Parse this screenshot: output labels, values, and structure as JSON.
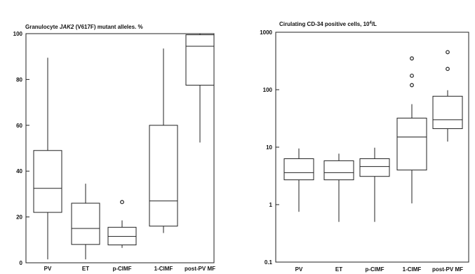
{
  "chart_data": [
    {
      "type": "boxplot",
      "title_parts": [
        "Granulocyte ",
        "JAK2",
        " (V617F) mutant alleles. %"
      ],
      "title": "Granulocyte JAK2 (V617F) mutant alleles. %",
      "xlabel": "",
      "ylabel": "",
      "yscale": "linear",
      "ylim": [
        0,
        100
      ],
      "yticks": [
        0,
        20,
        40,
        60,
        80,
        100
      ],
      "grid": false,
      "categories": [
        "PV",
        "ET",
        "p-CIMF",
        "1-CIMF",
        "post-PV MF"
      ],
      "boxes": [
        {
          "min": 1.5,
          "q1": 22,
          "median": 32.5,
          "q3": 49,
          "max": 89.5,
          "outliers": []
        },
        {
          "min": 1.5,
          "q1": 8,
          "median": 15,
          "q3": 26,
          "max": 34.5,
          "outliers": []
        },
        {
          "min": 6.5,
          "q1": 7.8,
          "median": 11.5,
          "q3": 15.5,
          "max": 18.5,
          "outliers": [
            26.5
          ]
        },
        {
          "min": 13,
          "q1": 16,
          "median": 27,
          "q3": 60,
          "max": 93.5,
          "outliers": []
        },
        {
          "min": 52.5,
          "q1": 77.5,
          "median": 94.5,
          "q3": 99.5,
          "max": 100,
          "outliers": []
        }
      ]
    },
    {
      "type": "boxplot",
      "title_parts": [
        "Cirulating CD-34 positive cells, 10",
        "4",
        "/L"
      ],
      "title": "Cirulating CD-34 positive cells, 10^4/L",
      "xlabel": "",
      "ylabel": "",
      "yscale": "log",
      "ylim": [
        0.1,
        1000
      ],
      "yticks": [
        "0.1",
        "1",
        "10",
        "100",
        "1000"
      ],
      "grid": false,
      "categories": [
        "PV",
        "ET",
        "p-CIMF",
        "1-CIMF",
        "post-PV MF"
      ],
      "boxes": [
        {
          "min": 0.75,
          "q1": 2.7,
          "median": 3.6,
          "q3": 6.3,
          "max": 9.5,
          "outliers": []
        },
        {
          "min": 0.5,
          "q1": 2.7,
          "median": 3.6,
          "q3": 5.8,
          "max": 7.7,
          "outliers": []
        },
        {
          "min": 0.5,
          "q1": 3.1,
          "median": 4.6,
          "q3": 6.3,
          "max": 9.8,
          "outliers": []
        },
        {
          "min": 1.05,
          "q1": 4,
          "median": 15,
          "q3": 32,
          "max": 56,
          "outliers": [
            120,
            175,
            350
          ]
        },
        {
          "min": 12.5,
          "q1": 21,
          "median": 30,
          "q3": 77,
          "max": 98,
          "outliers": [
            230,
            450
          ]
        }
      ]
    }
  ]
}
